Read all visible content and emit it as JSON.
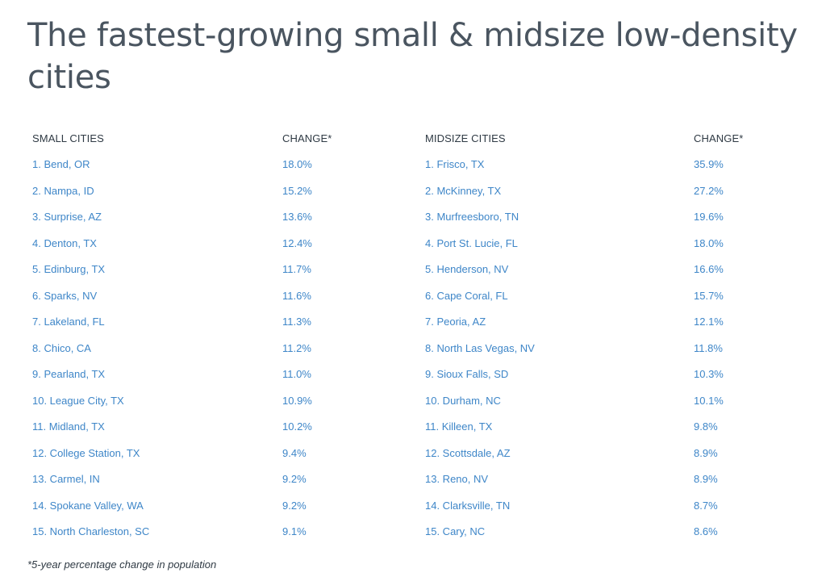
{
  "title": "The fastest-growing small & midsize low-density cities",
  "headers": {
    "small_cities": "SMALL CITIES",
    "small_change": "CHANGE*",
    "midsize_cities": "MIDSIZE CITIES",
    "midsize_change": "CHANGE*"
  },
  "rows": [
    {
      "small": "1. Bend, OR",
      "small_change": "18.0%",
      "midsize": "1. Frisco, TX",
      "midsize_change": "35.9%"
    },
    {
      "small": "2. Nampa, ID",
      "small_change": "15.2%",
      "midsize": "2. McKinney, TX",
      "midsize_change": "27.2%"
    },
    {
      "small": "3. Surprise, AZ",
      "small_change": "13.6%",
      "midsize": "3. Murfreesboro, TN",
      "midsize_change": "19.6%"
    },
    {
      "small": "4. Denton, TX",
      "small_change": "12.4%",
      "midsize": "4. Port St. Lucie, FL",
      "midsize_change": "18.0%"
    },
    {
      "small": "5. Edinburg, TX",
      "small_change": "11.7%",
      "midsize": "5. Henderson, NV",
      "midsize_change": "16.6%"
    },
    {
      "small": "6. Sparks, NV",
      "small_change": "11.6%",
      "midsize": "6. Cape Coral, FL",
      "midsize_change": "15.7%"
    },
    {
      "small": "7. Lakeland, FL",
      "small_change": "11.3%",
      "midsize": "7. Peoria, AZ",
      "midsize_change": "12.1%"
    },
    {
      "small": "8. Chico, CA",
      "small_change": "11.2%",
      "midsize": "8. North Las Vegas, NV",
      "midsize_change": "11.8%"
    },
    {
      "small": "9. Pearland, TX",
      "small_change": "11.0%",
      "midsize": "9. Sioux Falls, SD",
      "midsize_change": "10.3%"
    },
    {
      "small": "10. League City, TX",
      "small_change": "10.9%",
      "midsize": "10. Durham, NC",
      "midsize_change": "10.1%"
    },
    {
      "small": "11. Midland, TX",
      "small_change": "10.2%",
      "midsize": "11. Killeen, TX",
      "midsize_change": "9.8%"
    },
    {
      "small": "12. College Station, TX",
      "small_change": "9.4%",
      "midsize": "12. Scottsdale, AZ",
      "midsize_change": "8.9%"
    },
    {
      "small": "13. Carmel, IN",
      "small_change": "9.2%",
      "midsize": "13. Reno, NV",
      "midsize_change": "8.9%"
    },
    {
      "small": "14. Spokane Valley, WA",
      "small_change": "9.2%",
      "midsize": "14. Clarksville, TN",
      "midsize_change": "8.7%"
    },
    {
      "small": "15. North Charleston, SC",
      "small_change": "9.1%",
      "midsize": "15. Cary, NC",
      "midsize_change": "8.6%"
    }
  ],
  "footnote": "*5-year percentage change in population",
  "colors": {
    "title": "#4a5560",
    "header": "#2f3a44",
    "link": "#3e86c8"
  }
}
